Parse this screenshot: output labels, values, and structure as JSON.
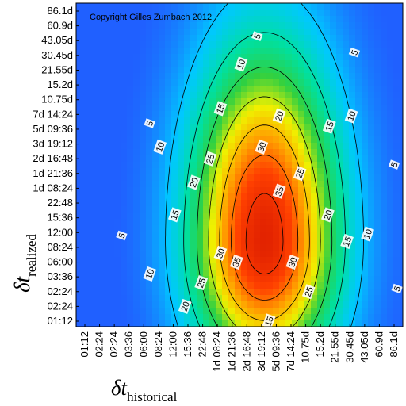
{
  "chart_data": {
    "type": "heatmap",
    "copyright": "Copyright Gilles Zumbach 2012",
    "x_axis": {
      "symbol": "δt",
      "subscript": "historical",
      "tick_labels": [
        "01:12",
        "02:24",
        "02:24",
        "03:36",
        "06:00",
        "08:24",
        "12:00",
        "15:36",
        "22:48",
        "1d 08:24",
        "1d 21:36",
        "2d 16:48",
        "3d 19:12",
        "5d 09:36",
        "7d 14:24",
        "10.75d",
        "15.2d",
        "21.55d",
        "30.45d",
        "43.05d",
        "60.9d",
        "86.1d"
      ]
    },
    "y_axis": {
      "symbol": "δt",
      "subscript": "realized",
      "tick_labels": [
        "86.1d",
        "60.9d",
        "43.05d",
        "30.45d",
        "21.55d",
        "15.2d",
        "10.75d",
        "7d 14:24",
        "5d 09:36",
        "3d 19:12",
        "2d 16:48",
        "1d 21:36",
        "1d 08:24",
        "22:48",
        "15:36",
        "12:00",
        "08:24",
        "06:00",
        "03:36",
        "02:24",
        "02:24",
        "01:12"
      ]
    },
    "peak": {
      "x_index": 12.2,
      "y_index": 15.6,
      "value": 38
    },
    "contour_levels": [
      5,
      10,
      15,
      20,
      25,
      30,
      35
    ],
    "contour_labels": [
      {
        "level": 5,
        "text": "5",
        "x_index": 11.7,
        "y_index": 1.7
      },
      {
        "level": 5,
        "text": "5",
        "x_index": 18.3,
        "y_index": 2.8
      },
      {
        "level": 5,
        "text": "5",
        "x_index": 4.4,
        "y_index": 7.6
      },
      {
        "level": 5,
        "text": "5",
        "x_index": 21.0,
        "y_index": 10.4
      },
      {
        "level": 5,
        "text": "5",
        "x_index": 2.5,
        "y_index": 15.2
      },
      {
        "level": 5,
        "text": "5",
        "x_index": 21.2,
        "y_index": 18.8
      },
      {
        "level": 10,
        "text": "10",
        "x_index": 10.6,
        "y_index": 3.6
      },
      {
        "level": 10,
        "text": "10",
        "x_index": 18.1,
        "y_index": 7.1
      },
      {
        "level": 10,
        "text": "10",
        "x_index": 5.1,
        "y_index": 9.2
      },
      {
        "level": 10,
        "text": "10",
        "x_index": 19.2,
        "y_index": 15.1
      },
      {
        "level": 10,
        "text": "10",
        "x_index": 4.4,
        "y_index": 17.8
      },
      {
        "level": 15,
        "text": "15",
        "x_index": 9.2,
        "y_index": 6.6
      },
      {
        "level": 15,
        "text": "15",
        "x_index": 16.6,
        "y_index": 7.8
      },
      {
        "level": 15,
        "text": "15",
        "x_index": 6.1,
        "y_index": 13.8
      },
      {
        "level": 15,
        "text": "15",
        "x_index": 17.8,
        "y_index": 15.6
      },
      {
        "level": 15,
        "text": "15",
        "x_index": 12.5,
        "y_index": 21.0
      },
      {
        "level": 20,
        "text": "20",
        "x_index": 13.2,
        "y_index": 7.1
      },
      {
        "level": 20,
        "text": "20",
        "x_index": 7.4,
        "y_index": 11.6
      },
      {
        "level": 20,
        "text": "20",
        "x_index": 16.5,
        "y_index": 13.8
      },
      {
        "level": 20,
        "text": "20",
        "x_index": 6.8,
        "y_index": 20.0
      },
      {
        "level": 25,
        "text": "25",
        "x_index": 8.5,
        "y_index": 10.0
      },
      {
        "level": 25,
        "text": "25",
        "x_index": 14.6,
        "y_index": 11.0
      },
      {
        "level": 25,
        "text": "25",
        "x_index": 7.9,
        "y_index": 18.4
      },
      {
        "level": 25,
        "text": "25",
        "x_index": 15.2,
        "y_index": 19.0
      },
      {
        "level": 30,
        "text": "30",
        "x_index": 12.0,
        "y_index": 9.2
      },
      {
        "level": 30,
        "text": "30",
        "x_index": 9.2,
        "y_index": 16.4
      },
      {
        "level": 30,
        "text": "30",
        "x_index": 14.1,
        "y_index": 17.0
      },
      {
        "level": 35,
        "text": "35",
        "x_index": 13.2,
        "y_index": 12.2
      },
      {
        "level": 35,
        "text": "35",
        "x_index": 10.3,
        "y_index": 17.0
      }
    ],
    "colormap": [
      "#2060ff",
      "#00c8ff",
      "#00e0a0",
      "#30d040",
      "#f0f000",
      "#ffa000",
      "#ff4000",
      "#e02000"
    ]
  }
}
